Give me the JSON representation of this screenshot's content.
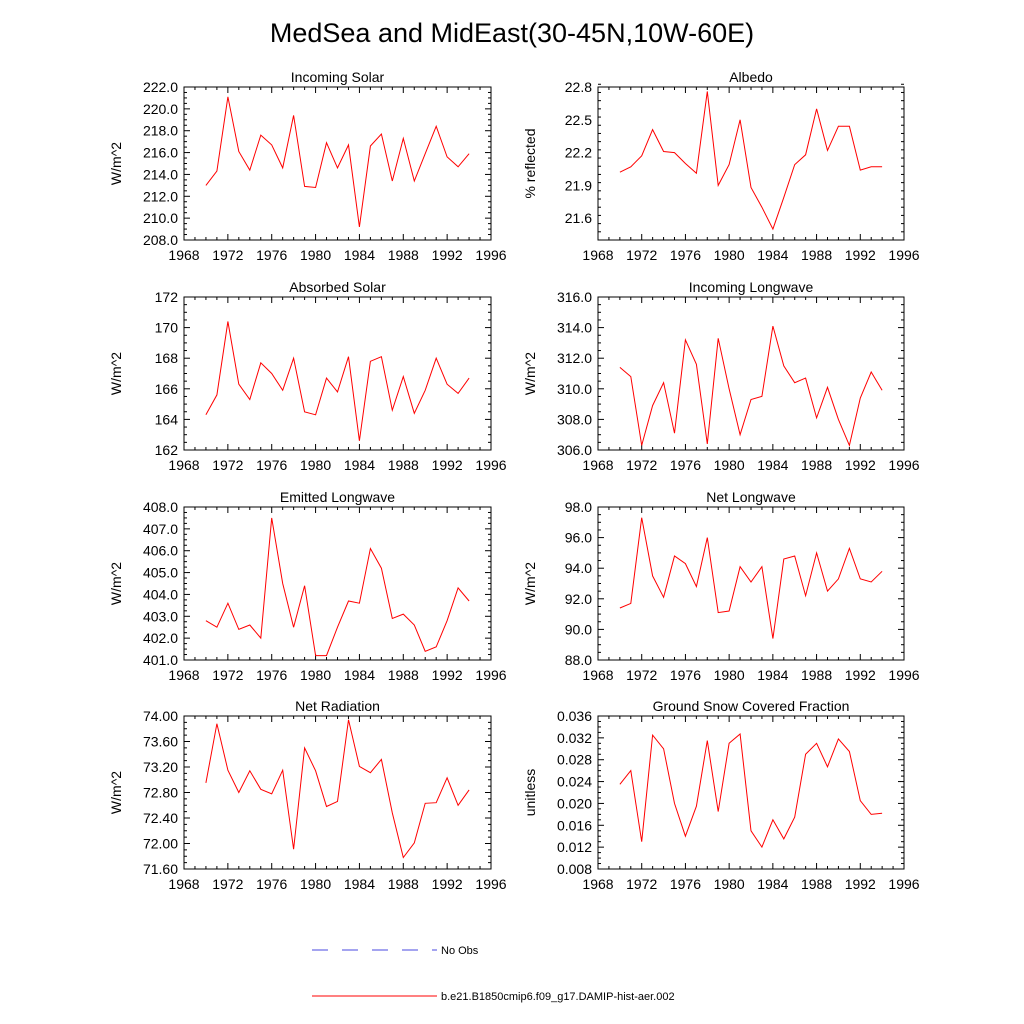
{
  "title": "MedSea and MidEast(30-45N,10W-60E)",
  "colors": {
    "model_line": "#ff0000",
    "obs_line": "#4a4ae0",
    "axis": "#000000"
  },
  "legend": {
    "items": [
      {
        "label": "No Obs",
        "style": "dashed",
        "color": "#4a4ae0"
      },
      {
        "label": "b.e21.B1850cmip6.f09_g17.DAMIP-hist-aer.002",
        "style": "solid",
        "color": "#ff0000"
      }
    ]
  },
  "chart_data": [
    {
      "type": "line",
      "title": "Incoming Solar",
      "ylabel": "W/m^2",
      "xlim": [
        1968,
        1996
      ],
      "ylim": [
        208.0,
        222.0
      ],
      "xticks": [
        1968,
        1972,
        1976,
        1980,
        1984,
        1988,
        1992,
        1996
      ],
      "xtick_labels": [
        "1968",
        "1972",
        "1976",
        "1980",
        "1984",
        "1988",
        "1992",
        "1996"
      ],
      "yticks": [
        208,
        210,
        212,
        214,
        216,
        218,
        220,
        222
      ],
      "ytick_labels": [
        "208.0",
        "210.0",
        "212.0",
        "214.0",
        "216.0",
        "218.0",
        "220.0",
        "222.0"
      ],
      "x": [
        1970,
        1971,
        1972,
        1973,
        1974,
        1975,
        1976,
        1977,
        1978,
        1979,
        1980,
        1981,
        1982,
        1983,
        1984,
        1985,
        1986,
        1987,
        1988,
        1989,
        1990,
        1991,
        1992,
        1993,
        1994
      ],
      "series": [
        {
          "values": [
            213.0,
            214.3,
            221.1,
            216.1,
            214.4,
            217.6,
            216.7,
            214.6,
            219.4,
            212.9,
            212.8,
            216.9,
            214.6,
            216.7,
            209.2,
            216.6,
            217.7,
            213.4,
            217.3,
            213.4,
            215.9,
            218.4,
            215.6,
            214.7,
            215.9
          ]
        }
      ]
    },
    {
      "type": "line",
      "title": "Albedo",
      "ylabel": "% reflected",
      "xlim": [
        1968,
        1996
      ],
      "ylim": [
        21.4,
        22.8
      ],
      "xticks": [
        1968,
        1972,
        1976,
        1980,
        1984,
        1988,
        1992,
        1996
      ],
      "xtick_labels": [
        "1968",
        "1972",
        "1976",
        "1980",
        "1984",
        "1988",
        "1992",
        "1996"
      ],
      "yticks": [
        21.6,
        21.9,
        22.2,
        22.5,
        22.8
      ],
      "ytick_labels": [
        "21.6",
        "21.9",
        "22.2",
        "22.5",
        "22.8"
      ],
      "x": [
        1970,
        1971,
        1972,
        1973,
        1974,
        1975,
        1976,
        1977,
        1978,
        1979,
        1980,
        1981,
        1982,
        1983,
        1984,
        1985,
        1986,
        1987,
        1988,
        1989,
        1990,
        1991,
        1992,
        1993,
        1994
      ],
      "series": [
        {
          "values": [
            22.02,
            22.07,
            22.17,
            22.41,
            22.21,
            22.2,
            22.1,
            22.01,
            22.76,
            21.9,
            22.09,
            22.5,
            21.88,
            21.7,
            21.5,
            21.79,
            22.09,
            22.18,
            22.6,
            22.22,
            22.44,
            22.44,
            22.04,
            22.07,
            22.07
          ]
        }
      ]
    },
    {
      "type": "line",
      "title": "Absorbed Solar",
      "ylabel": "W/m^2",
      "xlim": [
        1968,
        1996
      ],
      "ylim": [
        162,
        172
      ],
      "xticks": [
        1968,
        1972,
        1976,
        1980,
        1984,
        1988,
        1992,
        1996
      ],
      "xtick_labels": [
        "1968",
        "1972",
        "1976",
        "1980",
        "1984",
        "1988",
        "1992",
        "1996"
      ],
      "yticks": [
        162,
        164,
        166,
        168,
        170,
        172
      ],
      "ytick_labels": [
        "162",
        "164",
        "166",
        "168",
        "170",
        "172"
      ],
      "x": [
        1970,
        1971,
        1972,
        1973,
        1974,
        1975,
        1976,
        1977,
        1978,
        1979,
        1980,
        1981,
        1982,
        1983,
        1984,
        1985,
        1986,
        1987,
        1988,
        1989,
        1990,
        1991,
        1992,
        1993,
        1994
      ],
      "series": [
        {
          "values": [
            164.3,
            165.6,
            170.4,
            166.3,
            165.3,
            167.7,
            167.0,
            165.9,
            168.0,
            164.5,
            164.3,
            166.7,
            165.8,
            168.1,
            162.6,
            167.8,
            168.1,
            164.6,
            166.8,
            164.4,
            165.9,
            168.0,
            166.3,
            165.7,
            166.7
          ]
        }
      ]
    },
    {
      "type": "line",
      "title": "Incoming Longwave",
      "ylabel": "W/m^2",
      "xlim": [
        1968,
        1996
      ],
      "ylim": [
        306.0,
        316.0
      ],
      "xticks": [
        1968,
        1972,
        1976,
        1980,
        1984,
        1988,
        1992,
        1996
      ],
      "xtick_labels": [
        "1968",
        "1972",
        "1976",
        "1980",
        "1984",
        "1988",
        "1992",
        "1996"
      ],
      "yticks": [
        306,
        308,
        310,
        312,
        314,
        316
      ],
      "ytick_labels": [
        "306.0",
        "308.0",
        "310.0",
        "312.0",
        "314.0",
        "316.0"
      ],
      "x": [
        1970,
        1971,
        1972,
        1973,
        1974,
        1975,
        1976,
        1977,
        1978,
        1979,
        1980,
        1981,
        1982,
        1983,
        1984,
        1985,
        1986,
        1987,
        1988,
        1989,
        1990,
        1991,
        1992,
        1993,
        1994
      ],
      "series": [
        {
          "values": [
            311.4,
            310.8,
            306.3,
            308.9,
            310.4,
            307.1,
            313.2,
            311.6,
            306.4,
            313.3,
            310.0,
            307.0,
            309.3,
            309.5,
            314.1,
            311.5,
            310.4,
            310.7,
            308.1,
            310.1,
            308.0,
            306.3,
            309.4,
            311.1,
            309.9
          ]
        }
      ]
    },
    {
      "type": "line",
      "title": "Emitted Longwave",
      "ylabel": "W/m^2",
      "xlim": [
        1968,
        1996
      ],
      "ylim": [
        401.0,
        408.0
      ],
      "xticks": [
        1968,
        1972,
        1976,
        1980,
        1984,
        1988,
        1992,
        1996
      ],
      "xtick_labels": [
        "1968",
        "1972",
        "1976",
        "1980",
        "1984",
        "1988",
        "1992",
        "1996"
      ],
      "yticks": [
        401,
        402,
        403,
        404,
        405,
        406,
        407,
        408
      ],
      "ytick_labels": [
        "401.0",
        "402.0",
        "403.0",
        "404.0",
        "405.0",
        "406.0",
        "407.0",
        "408.0"
      ],
      "x": [
        1970,
        1971,
        1972,
        1973,
        1974,
        1975,
        1976,
        1977,
        1978,
        1979,
        1980,
        1981,
        1982,
        1983,
        1984,
        1985,
        1986,
        1987,
        1988,
        1989,
        1990,
        1991,
        1992,
        1993,
        1994
      ],
      "series": [
        {
          "values": [
            402.8,
            402.5,
            403.6,
            402.4,
            402.6,
            402.0,
            407.5,
            404.5,
            402.5,
            404.4,
            401.2,
            401.2,
            402.5,
            403.7,
            403.6,
            406.1,
            405.2,
            402.9,
            403.1,
            402.6,
            401.4,
            401.6,
            402.8,
            404.3,
            403.7
          ]
        }
      ]
    },
    {
      "type": "line",
      "title": "Net Longwave",
      "ylabel": "W/m^2",
      "xlim": [
        1968,
        1996
      ],
      "ylim": [
        88.0,
        98.0
      ],
      "xticks": [
        1968,
        1972,
        1976,
        1980,
        1984,
        1988,
        1992,
        1996
      ],
      "xtick_labels": [
        "1968",
        "1972",
        "1976",
        "1980",
        "1984",
        "1988",
        "1992",
        "1996"
      ],
      "yticks": [
        88,
        90,
        92,
        94,
        96,
        98
      ],
      "ytick_labels": [
        "88.0",
        "90.0",
        "92.0",
        "94.0",
        "96.0",
        "98.0"
      ],
      "x": [
        1970,
        1971,
        1972,
        1973,
        1974,
        1975,
        1976,
        1977,
        1978,
        1979,
        1980,
        1981,
        1982,
        1983,
        1984,
        1985,
        1986,
        1987,
        1988,
        1989,
        1990,
        1991,
        1992,
        1993,
        1994
      ],
      "series": [
        {
          "values": [
            91.4,
            91.7,
            97.3,
            93.5,
            92.1,
            94.8,
            94.3,
            92.8,
            96.0,
            91.1,
            91.2,
            94.1,
            93.1,
            94.1,
            89.4,
            94.6,
            94.8,
            92.2,
            95.0,
            92.5,
            93.3,
            95.3,
            93.3,
            93.1,
            93.8
          ]
        }
      ]
    },
    {
      "type": "line",
      "title": "Net Radiation",
      "ylabel": "W/m^2",
      "xlim": [
        1968,
        1996
      ],
      "ylim": [
        71.6,
        74.0
      ],
      "xticks": [
        1968,
        1972,
        1976,
        1980,
        1984,
        1988,
        1992,
        1996
      ],
      "xtick_labels": [
        "1968",
        "1972",
        "1976",
        "1980",
        "1984",
        "1988",
        "1992",
        "1996"
      ],
      "yticks": [
        71.6,
        72.0,
        72.4,
        72.8,
        73.2,
        73.6,
        74.0
      ],
      "ytick_labels": [
        "71.60",
        "72.00",
        "72.40",
        "72.80",
        "73.20",
        "73.60",
        "74.00"
      ],
      "x": [
        1970,
        1971,
        1972,
        1973,
        1974,
        1975,
        1976,
        1977,
        1978,
        1979,
        1980,
        1981,
        1982,
        1983,
        1984,
        1985,
        1986,
        1987,
        1988,
        1989,
        1990,
        1991,
        1992,
        1993,
        1994
      ],
      "series": [
        {
          "values": [
            72.95,
            73.88,
            73.15,
            72.8,
            73.14,
            72.85,
            72.78,
            73.15,
            71.91,
            73.5,
            73.14,
            72.58,
            72.66,
            73.94,
            73.21,
            73.11,
            73.32,
            72.48,
            71.78,
            72.01,
            72.63,
            72.64,
            73.03,
            72.6,
            72.84
          ]
        }
      ]
    },
    {
      "type": "line",
      "title": "Ground Snow Covered Fraction",
      "ylabel": "unitless",
      "xlim": [
        1968,
        1996
      ],
      "ylim": [
        0.008,
        0.036
      ],
      "xticks": [
        1968,
        1972,
        1976,
        1980,
        1984,
        1988,
        1992,
        1996
      ],
      "xtick_labels": [
        "1968",
        "1972",
        "1976",
        "1980",
        "1984",
        "1988",
        "1992",
        "1996"
      ],
      "yticks": [
        0.008,
        0.012,
        0.016,
        0.02,
        0.024,
        0.028,
        0.032,
        0.036
      ],
      "ytick_labels": [
        "0.008",
        "0.012",
        "0.016",
        "0.020",
        "0.024",
        "0.028",
        "0.032",
        "0.036"
      ],
      "x": [
        1970,
        1971,
        1972,
        1973,
        1974,
        1975,
        1976,
        1977,
        1978,
        1979,
        1980,
        1981,
        1982,
        1983,
        1984,
        1985,
        1986,
        1987,
        1988,
        1989,
        1990,
        1991,
        1992,
        1993,
        1994
      ],
      "series": [
        {
          "values": [
            0.0235,
            0.026,
            0.013,
            0.0325,
            0.03,
            0.02,
            0.014,
            0.0195,
            0.0315,
            0.0185,
            0.031,
            0.0327,
            0.015,
            0.012,
            0.017,
            0.0135,
            0.0175,
            0.029,
            0.031,
            0.0267,
            0.0318,
            0.0295,
            0.0205,
            0.018,
            0.0182
          ]
        }
      ]
    }
  ]
}
